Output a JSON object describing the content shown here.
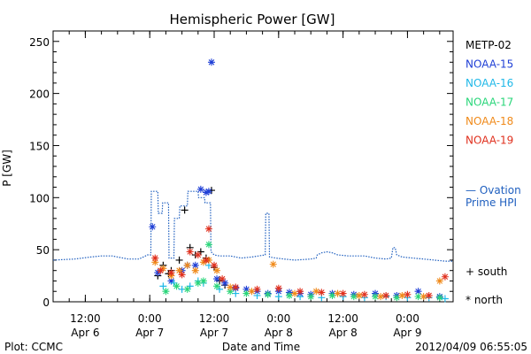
{
  "footer": {
    "left": "Plot: CCMC",
    "right": "2012/04/09 06:55:05"
  },
  "chart_data": {
    "type": "scatter",
    "title": "Hemispheric Power [GW]",
    "xlabel": "Date and Time",
    "ylabel": "P [GW]",
    "ylim": [
      0,
      260
    ],
    "xlim": [
      0,
      60
    ],
    "x_units": "hours since 2012-04-06 06:00",
    "yticks": [
      0,
      50,
      100,
      150,
      200,
      250
    ],
    "xticks": [
      {
        "x": 6,
        "l1": "12:00",
        "l2": "Apr 6"
      },
      {
        "x": 18,
        "l1": "0:00",
        "l2": "Apr 7"
      },
      {
        "x": 30,
        "l1": "12:00",
        "l2": "Apr 7"
      },
      {
        "x": 42,
        "l1": "0:00",
        "l2": "Apr 8"
      },
      {
        "x": 54,
        "l1": "12:00",
        "l2": "Apr 8"
      },
      {
        "x": 66,
        "l1": "0:00",
        "l2": "Apr 9"
      }
    ],
    "legend": [
      {
        "name": "METP-02",
        "color": "#000000"
      },
      {
        "name": "NOAA-15",
        "color": "#1f3fd6"
      },
      {
        "name": "NOAA-16",
        "color": "#1fb8e8"
      },
      {
        "name": "NOAA-17",
        "color": "#2ad67a"
      },
      {
        "name": "NOAA-18",
        "color": "#f08a1a"
      },
      {
        "name": "NOAA-19",
        "color": "#e0301e"
      }
    ],
    "ovation_label": [
      "— Ovation",
      "Prime HPI"
    ],
    "marker_legend": [
      {
        "symbol": "+",
        "label": "south"
      },
      {
        "symbol": "*",
        "label": "north"
      }
    ],
    "ovation_series": {
      "name": "Ovation Prime HPI",
      "color": "#1f5fbf",
      "points": [
        [
          0,
          40
        ],
        [
          4,
          41
        ],
        [
          7,
          43
        ],
        [
          9,
          44
        ],
        [
          11,
          44
        ],
        [
          14,
          41
        ],
        [
          16,
          41
        ],
        [
          17.2,
          44
        ],
        [
          17.5,
          45
        ],
        [
          18.2,
          45
        ],
        [
          18.3,
          106
        ],
        [
          19.5,
          106
        ],
        [
          19.6,
          85
        ],
        [
          20.3,
          85
        ],
        [
          20.4,
          95
        ],
        [
          21.5,
          95
        ],
        [
          21.6,
          42
        ],
        [
          22.5,
          42
        ],
        [
          22.6,
          80
        ],
        [
          23.5,
          80
        ],
        [
          23.6,
          92
        ],
        [
          25,
          92
        ],
        [
          25.1,
          106
        ],
        [
          27,
          106
        ],
        [
          27.1,
          100
        ],
        [
          28.2,
          100
        ],
        [
          28.3,
          95
        ],
        [
          29.3,
          95
        ],
        [
          29.4,
          48
        ],
        [
          30,
          45
        ],
        [
          31,
          44
        ],
        [
          33,
          44
        ],
        [
          35,
          42
        ],
        [
          37,
          43
        ],
        [
          39.5,
          45
        ],
        [
          39.6,
          85
        ],
        [
          40.2,
          85
        ],
        [
          40.3,
          43
        ],
        [
          41.5,
          42
        ],
        [
          43,
          41
        ],
        [
          45,
          40
        ],
        [
          48,
          41
        ],
        [
          49,
          42
        ],
        [
          49.2,
          45
        ],
        [
          50,
          47
        ],
        [
          51,
          48
        ],
        [
          52,
          47
        ],
        [
          53,
          45
        ],
        [
          55,
          44
        ],
        [
          58,
          44
        ],
        [
          60,
          42
        ],
        [
          62,
          41
        ],
        [
          63,
          42
        ],
        [
          63.3,
          52
        ],
        [
          63.7,
          52
        ],
        [
          64,
          45
        ],
        [
          65,
          43
        ],
        [
          67,
          42
        ],
        [
          69,
          41
        ],
        [
          71,
          40
        ],
        [
          73,
          39
        ],
        [
          74.5,
          39
        ]
      ]
    },
    "x_range": [
      0,
      74.5
    ],
    "scatter_series": [
      {
        "name": "METP-02",
        "color": "#000000",
        "marker": "+",
        "points": [
          [
            19.5,
            25
          ],
          [
            20.5,
            35
          ],
          [
            21.5,
            27
          ],
          [
            22,
            30
          ],
          [
            23.5,
            40
          ],
          [
            24.5,
            88
          ],
          [
            25.5,
            52
          ],
          [
            26.5,
            45
          ],
          [
            27.5,
            48
          ],
          [
            28.5,
            42
          ],
          [
            29.5,
            107
          ],
          [
            30,
            33
          ],
          [
            31,
            20
          ],
          [
            32,
            16
          ]
        ]
      },
      {
        "name": "NOAA-15",
        "color": "#1f3fd6",
        "marker": "*",
        "points": [
          [
            18.5,
            72
          ],
          [
            19.5,
            28
          ],
          [
            22,
            20
          ],
          [
            24,
            30
          ],
          [
            25,
            35
          ],
          [
            26.5,
            35
          ],
          [
            27.5,
            108
          ],
          [
            28.5,
            105
          ],
          [
            29,
            106
          ],
          [
            29.5,
            230
          ],
          [
            30.5,
            22
          ],
          [
            32,
            18
          ],
          [
            34,
            13
          ],
          [
            36,
            12
          ],
          [
            38,
            10
          ],
          [
            40,
            8
          ],
          [
            42,
            10
          ],
          [
            44,
            9
          ],
          [
            46,
            8
          ],
          [
            48,
            7
          ],
          [
            52,
            8
          ],
          [
            56,
            7
          ],
          [
            60,
            8
          ],
          [
            64,
            6
          ],
          [
            68,
            10
          ],
          [
            72,
            5
          ]
        ]
      },
      {
        "name": "NOAA-16",
        "color": "#1fb8e8",
        "marker": "+",
        "points": [
          [
            20.5,
            15
          ],
          [
            22.5,
            18
          ],
          [
            24,
            12
          ],
          [
            25.5,
            15
          ],
          [
            27,
            20
          ],
          [
            28,
            18
          ],
          [
            29,
            35
          ],
          [
            31,
            12
          ],
          [
            34,
            8
          ],
          [
            38,
            6
          ],
          [
            42,
            5
          ],
          [
            46,
            5
          ],
          [
            50,
            4
          ],
          [
            54,
            5
          ],
          [
            58,
            4
          ],
          [
            62,
            5
          ],
          [
            66,
            4
          ],
          [
            70,
            4
          ],
          [
            73,
            3
          ]
        ]
      },
      {
        "name": "NOAA-17",
        "color": "#2ad67a",
        "marker": "*",
        "points": [
          [
            21,
            10
          ],
          [
            23,
            15
          ],
          [
            25,
            12
          ],
          [
            27,
            18
          ],
          [
            28,
            20
          ],
          [
            29,
            55
          ],
          [
            30.5,
            15
          ],
          [
            33,
            10
          ],
          [
            36,
            8
          ],
          [
            40,
            7
          ],
          [
            44,
            6
          ],
          [
            48,
            5
          ],
          [
            52,
            6
          ],
          [
            56,
            5
          ],
          [
            60,
            5
          ],
          [
            64,
            4
          ],
          [
            68,
            5
          ],
          [
            72,
            4
          ]
        ]
      },
      {
        "name": "NOAA-18",
        "color": "#f08a1a",
        "marker": "*",
        "points": [
          [
            19,
            38
          ],
          [
            20.5,
            32
          ],
          [
            22,
            25
          ],
          [
            23.5,
            30
          ],
          [
            25,
            35
          ],
          [
            26.5,
            30
          ],
          [
            28,
            38
          ],
          [
            29,
            40
          ],
          [
            30.5,
            30
          ],
          [
            33,
            14
          ],
          [
            37,
            10
          ],
          [
            41,
            36
          ],
          [
            45,
            8
          ],
          [
            49,
            10
          ],
          [
            53,
            8
          ],
          [
            57,
            6
          ],
          [
            61,
            5
          ],
          [
            65,
            6
          ],
          [
            69,
            5
          ],
          [
            72,
            20
          ]
        ]
      },
      {
        "name": "NOAA-19",
        "color": "#e0301e",
        "marker": "*",
        "points": [
          [
            19,
            42
          ],
          [
            20,
            30
          ],
          [
            22,
            28
          ],
          [
            24,
            26
          ],
          [
            25.5,
            48
          ],
          [
            27,
            45
          ],
          [
            28.5,
            40
          ],
          [
            29,
            70
          ],
          [
            30,
            35
          ],
          [
            31.5,
            22
          ],
          [
            34,
            14
          ],
          [
            38,
            12
          ],
          [
            42,
            13
          ],
          [
            46,
            10
          ],
          [
            50,
            9
          ],
          [
            54,
            8
          ],
          [
            58,
            7
          ],
          [
            62,
            6
          ],
          [
            66,
            7
          ],
          [
            70,
            6
          ],
          [
            73,
            24
          ]
        ]
      }
    ],
    "background_noise_note_none": ""
  }
}
